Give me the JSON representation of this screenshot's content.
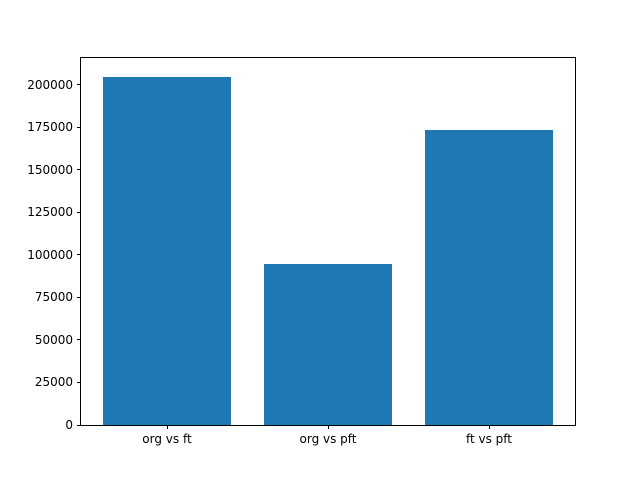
{
  "figure": {
    "background": "#ffffff"
  },
  "chart_data": {
    "type": "bar",
    "categories": [
      "org vs ft",
      "org vs pft",
      "ft vs pft"
    ],
    "values": [
      204600,
      94800,
      173300
    ],
    "title": "",
    "xlabel": "",
    "ylabel": "",
    "ylim": [
      0,
      215800
    ],
    "yticks": [
      0,
      25000,
      50000,
      75000,
      100000,
      125000,
      150000,
      175000,
      200000
    ],
    "ytick_labels": [
      "0",
      "25000",
      "50000",
      "75000",
      "100000",
      "125000",
      "150000",
      "175000",
      "200000"
    ],
    "bar_color": "#1f77b4",
    "axis_color": "#000000",
    "grid": false,
    "legend_position": null
  }
}
